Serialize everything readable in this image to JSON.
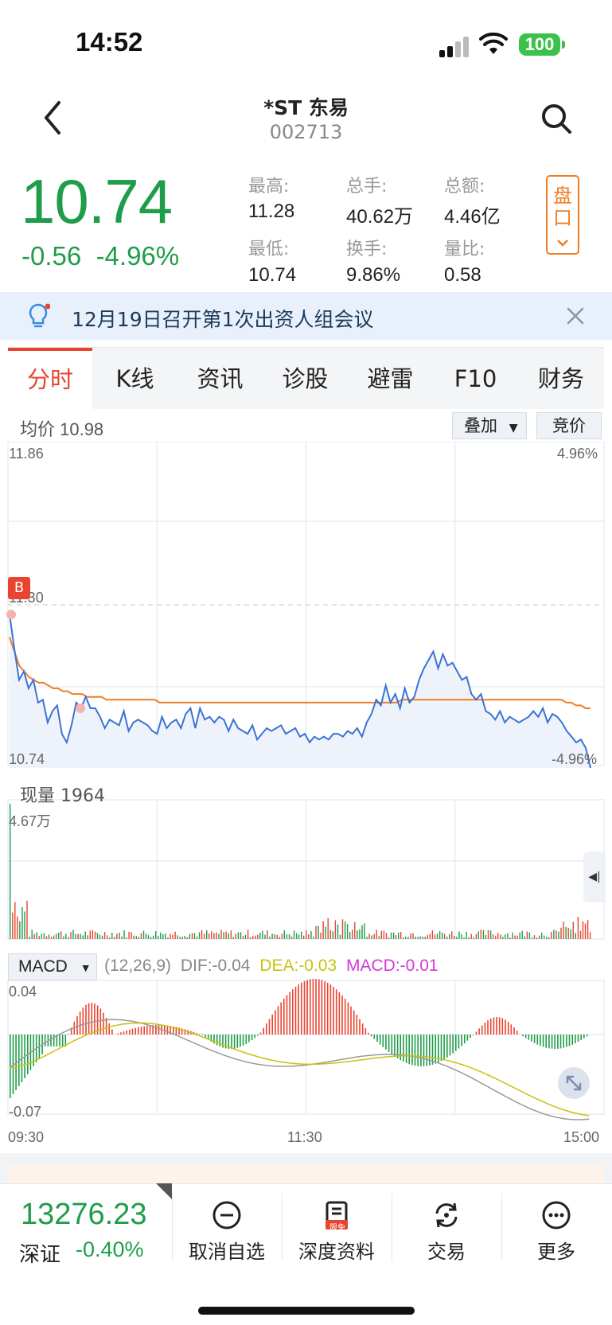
{
  "status_bar": {
    "time": "14:52",
    "battery": "100"
  },
  "header": {
    "title": "*ST 东易",
    "code": "002713"
  },
  "quote": {
    "price": "10.74",
    "change": "-0.56",
    "change_pct": "-4.96%",
    "stats": [
      {
        "label": "最高:",
        "value": "11.28"
      },
      {
        "label": "总手:",
        "value": "40.62万"
      },
      {
        "label": "总额:",
        "value": "4.46亿"
      },
      {
        "label": "最低:",
        "value": "10.74"
      },
      {
        "label": "换手:",
        "value": "9.86%"
      },
      {
        "label": "量比:",
        "value": "0.58"
      }
    ],
    "pankou_label": "盘口"
  },
  "notice": {
    "text": "12月19日召开第1次出资人组会议"
  },
  "tabs": [
    "分时",
    "K线",
    "资讯",
    "诊股",
    "避雷",
    "F10",
    "财务"
  ],
  "chart_header": {
    "avg_label": "均价 10.98",
    "overlay_label": "叠加",
    "bid_label": "竞价"
  },
  "chart_data": [
    {
      "type": "line",
      "y_axis_left": [
        "11.86",
        "11.30",
        "10.74"
      ],
      "y_axis_right": [
        "4.96%",
        "-4.96%"
      ],
      "x_axis": [
        "09:30",
        "11:30",
        "15:00"
      ],
      "marker": "B",
      "series": [
        {
          "color": "#3a73d6",
          "values": [
            11.28,
            11.16,
            11.05,
            11.08,
            11.02,
            11.05,
            10.97,
            10.98,
            10.9,
            10.94,
            10.96,
            10.86,
            10.83,
            10.89,
            10.97,
            10.95,
            10.99,
            10.95,
            10.95,
            10.92,
            10.88,
            10.91,
            10.9,
            10.89,
            10.94,
            10.87,
            10.9,
            10.91,
            10.9,
            10.89,
            10.87,
            10.86,
            10.92,
            10.88,
            10.9,
            10.91,
            10.88,
            10.93,
            10.95,
            10.88,
            10.95,
            10.91,
            10.92,
            10.9,
            10.92,
            10.91,
            10.87,
            10.91,
            10.88,
            10.87,
            10.86,
            10.89,
            10.84,
            10.86,
            10.88,
            10.87,
            10.88,
            10.89,
            10.86,
            10.87,
            10.88,
            10.85,
            10.86,
            10.83,
            10.85,
            10.84,
            10.85,
            10.84,
            10.86,
            10.86,
            10.85,
            10.87,
            10.86,
            10.88,
            10.85,
            10.9,
            10.93,
            10.98,
            10.96,
            11.03,
            10.97,
            11.0,
            10.95,
            11.02,
            10.97,
            10.99,
            11.05,
            11.09,
            11.12,
            11.15,
            11.09,
            11.14,
            11.1,
            11.11,
            11.08,
            11.05,
            11.06,
            11.0,
            10.98,
            11.0,
            10.94,
            10.93,
            10.91,
            10.94,
            10.9,
            10.92,
            10.91,
            10.9,
            10.91,
            10.92,
            10.94,
            10.92,
            10.95,
            10.9,
            10.93,
            10.92,
            10.9,
            10.87,
            10.85,
            10.83,
            10.84,
            10.81,
            10.74
          ]
        },
        {
          "color": "#f07e24",
          "values": [
            11.2,
            11.15,
            11.1,
            11.08,
            11.06,
            11.05,
            11.04,
            11.04,
            11.03,
            11.02,
            11.02,
            11.01,
            11.01,
            11.0,
            11.0,
            11.0,
            10.99,
            10.99,
            10.99,
            10.99,
            10.98,
            10.98,
            10.98,
            10.98,
            10.98,
            10.98,
            10.98,
            10.98,
            10.98,
            10.98,
            10.98,
            10.97,
            10.97,
            10.97,
            10.97,
            10.97,
            10.97,
            10.97,
            10.97,
            10.97,
            10.97,
            10.97,
            10.97,
            10.97,
            10.97,
            10.97,
            10.97,
            10.97,
            10.97,
            10.97,
            10.97,
            10.97,
            10.97,
            10.97,
            10.97,
            10.97,
            10.97,
            10.97,
            10.97,
            10.97,
            10.97,
            10.97,
            10.97,
            10.97,
            10.97,
            10.97,
            10.97,
            10.97,
            10.97,
            10.97,
            10.97,
            10.97,
            10.97,
            10.97,
            10.97,
            10.97,
            10.97,
            10.97,
            10.97,
            10.97,
            10.97,
            10.98,
            10.98,
            10.98,
            10.98,
            10.98,
            10.98,
            10.98,
            10.98,
            10.98,
            10.98,
            10.98,
            10.98,
            10.98,
            10.98,
            10.98,
            10.98,
            10.98,
            10.98,
            10.98,
            10.98,
            10.98,
            10.98,
            10.98,
            10.98,
            10.98,
            10.98,
            10.98,
            10.98,
            10.98,
            10.98,
            10.98,
            10.98,
            10.98,
            10.98,
            10.97,
            10.97,
            10.96,
            10.96,
            10.95,
            10.95
          ]
        }
      ]
    },
    {
      "type": "bar",
      "label": "现量 1964",
      "y_max_label": "4.67万"
    },
    {
      "type": "line",
      "params": "(12,26,9)",
      "dif": "DIF:-0.04",
      "dea": "DEA:-0.03",
      "macd": "MACD:-0.01",
      "y_axis": [
        "0.04",
        "-0.07"
      ]
    }
  ],
  "macd_select": "MACD",
  "index": {
    "value": "13276.23",
    "name": "深证",
    "change_pct": "-0.40%"
  },
  "nav": [
    {
      "label": "取消自选",
      "icon": "minus-circle-icon"
    },
    {
      "label": "深度资料",
      "icon": "document-icon",
      "badge": "限免"
    },
    {
      "label": "交易",
      "icon": "exchange-icon"
    },
    {
      "label": "更多",
      "icon": "more-icon"
    }
  ],
  "colors": {
    "up": "#e8442f",
    "down": "#1f9d4a",
    "price_line": "#3a73d6",
    "avg_line": "#f07e24"
  }
}
